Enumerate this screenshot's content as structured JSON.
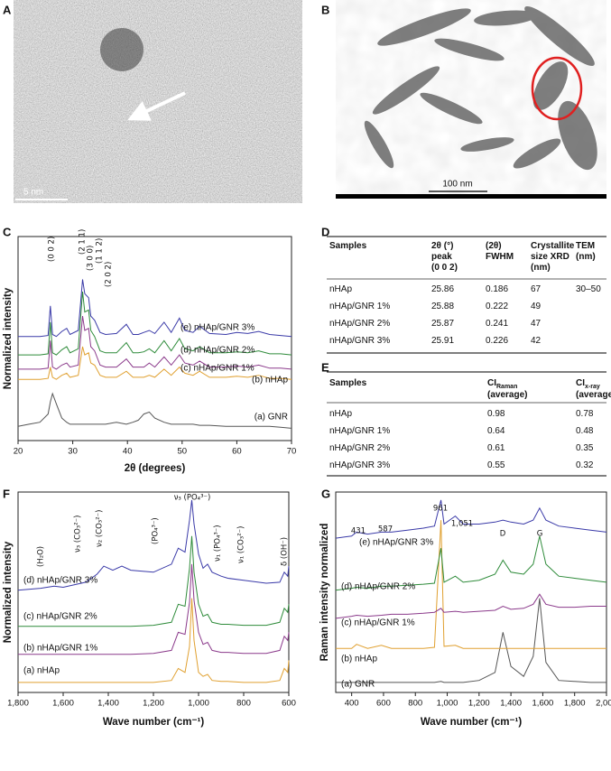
{
  "images": [
    {
      "panel": "A",
      "scale_bar": "5 nm"
    },
    {
      "panel": "B",
      "scale_bar": "100 nm"
    }
  ],
  "chart_data": [
    {
      "type": "line",
      "panel": "C",
      "xlabel": "2θ (degrees)",
      "ylabel": "Normalized intensity",
      "x": [
        20,
        22,
        24,
        25.5,
        25.9,
        26.3,
        27,
        28,
        28.9,
        29.5,
        31,
        31.8,
        32.2,
        32.9,
        33.3,
        34,
        35,
        36,
        38,
        39.8,
        41,
        42,
        43,
        44,
        45,
        46.7,
        48,
        49.5,
        50.5,
        52,
        53.2,
        55,
        58,
        60,
        62,
        64,
        66,
        68,
        70
      ],
      "xlim": [
        20,
        70
      ],
      "xticks": [
        20,
        30,
        40,
        50,
        60,
        70
      ],
      "ylim": [
        0,
        10
      ],
      "series": [
        {
          "name": "(a) GNR",
          "color": "#555555",
          "values": [
            0.7,
            0.8,
            0.9,
            1.3,
            1.9,
            2.3,
            1.8,
            1.1,
            0.9,
            0.8,
            0.8,
            0.8,
            0.8,
            0.8,
            0.8,
            0.8,
            0.8,
            0.8,
            0.9,
            0.8,
            0.9,
            1.0,
            1.3,
            1.4,
            1.1,
            0.9,
            0.8,
            0.8,
            0.8,
            0.8,
            0.75,
            0.75,
            0.7,
            0.7,
            0.7,
            0.7,
            0.7,
            0.65,
            0.6
          ]
        },
        {
          "name": "(b) nHAp",
          "color": "#e0a030",
          "values": [
            3.0,
            3.0,
            3.0,
            3.05,
            3.6,
            3.1,
            3.0,
            3.2,
            3.3,
            3.1,
            3.2,
            4.6,
            4.2,
            4.3,
            3.8,
            3.7,
            3.2,
            3.1,
            3.1,
            3.4,
            3.1,
            3.1,
            3.1,
            3.2,
            3.1,
            3.5,
            3.2,
            3.6,
            3.3,
            3.2,
            3.4,
            3.1,
            3.1,
            3.15,
            3.1,
            3.2,
            3.05,
            3.05,
            3.0
          ]
        },
        {
          "name": "(c) nHAp/GNR 1%",
          "color": "#8b3a8b",
          "values": [
            3.5,
            3.5,
            3.5,
            3.55,
            4.9,
            3.6,
            3.5,
            3.7,
            3.8,
            3.6,
            3.7,
            6.1,
            5.4,
            5.5,
            4.6,
            4.4,
            3.7,
            3.6,
            3.6,
            4.0,
            3.6,
            3.6,
            3.6,
            3.8,
            3.6,
            4.1,
            3.7,
            4.2,
            3.8,
            3.7,
            3.9,
            3.6,
            3.6,
            3.65,
            3.6,
            3.7,
            3.55,
            3.55,
            3.5
          ]
        },
        {
          "name": "(d) nHAp/GNR 2%",
          "color": "#2e8b3a",
          "values": [
            4.2,
            4.2,
            4.2,
            4.25,
            5.8,
            4.3,
            4.2,
            4.45,
            4.6,
            4.3,
            4.5,
            7.3,
            6.3,
            6.4,
            5.4,
            5.1,
            4.4,
            4.3,
            4.3,
            4.8,
            4.3,
            4.3,
            4.35,
            4.5,
            4.3,
            4.9,
            4.4,
            5.0,
            4.5,
            4.4,
            4.6,
            4.3,
            4.3,
            4.35,
            4.3,
            4.4,
            4.25,
            4.25,
            4.2
          ]
        },
        {
          "name": "(e) nHAp/GNR 3%",
          "color": "#3a3aa8",
          "values": [
            5.1,
            5.1,
            5.1,
            5.15,
            6.6,
            5.2,
            5.1,
            5.35,
            5.5,
            5.2,
            5.4,
            7.9,
            7.2,
            7.0,
            6.1,
            5.9,
            5.3,
            5.2,
            5.25,
            5.7,
            5.2,
            5.2,
            5.3,
            5.4,
            5.25,
            5.8,
            5.3,
            6.0,
            5.4,
            5.3,
            5.6,
            5.25,
            5.2,
            5.3,
            5.25,
            5.35,
            5.2,
            5.15,
            5.1
          ]
        }
      ],
      "annotations": [
        "(0 0 2)",
        "(2 1 1)",
        "(3 0 0)",
        "(1 1 2)",
        "(2 0 2)"
      ]
    },
    {
      "type": "line",
      "panel": "F",
      "xlabel": "Wave number (cm⁻¹)",
      "ylabel": "Normalized intensity",
      "x": [
        1800,
        1700,
        1640,
        1600,
        1500,
        1450,
        1420,
        1380,
        1340,
        1300,
        1200,
        1120,
        1090,
        1060,
        1040,
        1030,
        1020,
        1000,
        980,
        960,
        940,
        900,
        870,
        800,
        700,
        640,
        620,
        605,
        600
      ],
      "xlim": [
        1800,
        600
      ],
      "xticks": [
        {
          "value": 1800,
          "label": "1,800"
        },
        {
          "value": 1600,
          "label": "1,600"
        },
        {
          "value": 1400,
          "label": "1,400"
        },
        {
          "value": 1200,
          "label": "1,200"
        },
        {
          "value": 1000,
          "label": "1,000"
        },
        800,
        600
      ],
      "ylim": [
        0,
        10
      ],
      "series": [
        {
          "name": "(a) nHAp",
          "color": "#e0a030",
          "values": [
            0.5,
            0.5,
            0.5,
            0.5,
            0.5,
            0.5,
            0.5,
            0.5,
            0.5,
            0.5,
            0.5,
            0.6,
            1.2,
            1.0,
            2.3,
            4.7,
            2.6,
            1.0,
            0.8,
            0.9,
            0.6,
            0.55,
            0.55,
            0.5,
            0.5,
            0.6,
            1.2,
            1.0,
            1.6
          ]
        },
        {
          "name": "(b) nHAp/GNR 1%",
          "color": "#8b3a8b",
          "values": [
            1.9,
            1.9,
            1.9,
            1.9,
            1.9,
            1.9,
            1.9,
            1.9,
            1.9,
            1.9,
            1.95,
            2.1,
            3.0,
            2.9,
            4.5,
            6.4,
            4.6,
            3.0,
            2.4,
            2.5,
            2.1,
            2.0,
            2.0,
            1.95,
            1.95,
            2.1,
            2.8,
            2.6,
            3.0
          ]
        },
        {
          "name": "(c) nHAp/GNR 2%",
          "color": "#2e8b3a",
          "values": [
            3.3,
            3.3,
            3.3,
            3.3,
            3.3,
            3.3,
            3.3,
            3.3,
            3.3,
            3.3,
            3.35,
            3.5,
            4.4,
            4.3,
            6.2,
            7.8,
            6.0,
            4.4,
            3.8,
            3.9,
            3.5,
            3.4,
            3.4,
            3.35,
            3.35,
            3.5,
            4.2,
            4.0,
            4.4
          ]
        },
        {
          "name": "(d) nHAp/GNR 3%",
          "color": "#3a3aa8",
          "values": [
            5.1,
            5.2,
            5.3,
            5.25,
            5.5,
            5.9,
            6.3,
            6.1,
            6.3,
            6.1,
            6.0,
            6.4,
            7.2,
            7.0,
            8.6,
            9.6,
            8.4,
            6.9,
            6.2,
            6.4,
            6.0,
            5.8,
            5.7,
            5.6,
            5.45,
            5.5,
            6.0,
            5.8,
            6.3
          ]
        }
      ],
      "annotations": [
        "(H₂O)",
        "ν₃ (CO₃²⁻)",
        "ν₂ (CO₃²⁻)",
        "(PO₄³⁻)",
        "ν₃ (PO₄³⁻)",
        "ν₁ (PO₄³⁻)",
        "ν₁ (CO₃²⁻)",
        "δ (OH⁻)"
      ]
    },
    {
      "type": "line",
      "panel": "G",
      "xlabel": "Wave number (cm⁻¹)",
      "ylabel": "Raman intensity normalized",
      "x": [
        300,
        400,
        431,
        500,
        587,
        650,
        750,
        850,
        920,
        961,
        980,
        1051,
        1100,
        1200,
        1300,
        1350,
        1400,
        1480,
        1540,
        1580,
        1620,
        1700,
        1800,
        1900,
        2000
      ],
      "xlim": [
        300,
        2000
      ],
      "xticks": [
        400,
        600,
        800,
        {
          "value": 1000,
          "label": "1,000"
        },
        {
          "value": 1200,
          "label": "1,200"
        },
        {
          "value": 1400,
          "label": "1,400"
        },
        {
          "value": 1600,
          "label": "1,600"
        },
        {
          "value": 1800,
          "label": "1,800"
        },
        {
          "value": 2000,
          "label": "2,000"
        }
      ],
      "ylim": [
        0,
        10
      ],
      "series": [
        {
          "name": "(a) GNR",
          "color": "#555555",
          "values": [
            0.5,
            0.5,
            0.5,
            0.5,
            0.5,
            0.5,
            0.5,
            0.5,
            0.5,
            0.55,
            0.5,
            0.5,
            0.5,
            0.6,
            1.0,
            3.0,
            1.3,
            0.8,
            1.8,
            4.7,
            1.5,
            0.6,
            0.55,
            0.5,
            0.5
          ]
        },
        {
          "name": "(b) nHAp",
          "color": "#e0a030",
          "values": [
            2.2,
            2.2,
            2.4,
            2.2,
            2.35,
            2.2,
            2.2,
            2.2,
            2.25,
            8.6,
            2.3,
            2.35,
            2.2,
            2.2,
            2.2,
            2.2,
            2.2,
            2.2,
            2.2,
            2.2,
            2.2,
            2.2,
            2.2,
            2.2,
            2.2
          ]
        },
        {
          "name": "(c) nHAp/GNR 1%",
          "color": "#8b3a8b",
          "values": [
            3.7,
            3.8,
            3.85,
            3.8,
            3.85,
            3.9,
            3.9,
            3.95,
            4.0,
            4.2,
            4.0,
            4.05,
            4.0,
            4.05,
            4.1,
            4.3,
            4.15,
            4.2,
            4.4,
            4.9,
            4.4,
            4.25,
            4.25,
            4.3,
            4.3
          ]
        },
        {
          "name": "(d) nHAp/GNR 2%",
          "color": "#2e8b3a",
          "values": [
            5.1,
            5.2,
            5.25,
            5.2,
            5.3,
            5.3,
            5.35,
            5.4,
            5.45,
            7.2,
            5.5,
            5.8,
            5.5,
            5.6,
            5.9,
            6.6,
            6.0,
            5.9,
            6.4,
            7.8,
            6.4,
            5.8,
            5.7,
            5.6,
            5.5
          ]
        },
        {
          "name": "(e) nHAp/GNR 3%",
          "color": "#3a3aa8",
          "values": [
            7.7,
            7.8,
            8.0,
            7.9,
            8.0,
            8.0,
            8.1,
            8.2,
            8.3,
            9.6,
            8.4,
            8.8,
            8.4,
            8.4,
            8.5,
            8.6,
            8.5,
            8.4,
            8.6,
            9.2,
            8.6,
            8.3,
            8.2,
            8.1,
            8.0
          ]
        }
      ],
      "annotations": [
        "431",
        "587",
        "961",
        "1,051",
        "D",
        "G"
      ]
    }
  ],
  "tables": [
    {
      "panel": "D",
      "headers": [
        [
          "Samples"
        ],
        [
          "2θ (°)",
          "peak",
          "(0 0 2)"
        ],
        [
          "(2θ)",
          "FWHM"
        ],
        [
          "Crystallite",
          "size XRD",
          "(nm)"
        ],
        [
          "TEM",
          "(nm)"
        ]
      ],
      "rows": [
        [
          "nHAp",
          25.86,
          0.186,
          67,
          "30–50"
        ],
        [
          "nHAp/GNR 1%",
          25.88,
          0.222,
          49
        ],
        [
          "nHAp/GNR 2%",
          25.87,
          0.241,
          47
        ],
        [
          "nHAp/GNR 3%",
          25.91,
          0.226,
          42
        ]
      ]
    },
    {
      "panel": "E",
      "headers": [
        {
          "text": "Samples"
        },
        {
          "text": "CI",
          "sub": "Raman",
          "note": "(average)"
        },
        {
          "text": "CI",
          "sub": "x-ray",
          "note": "(average)"
        }
      ],
      "rows": [
        [
          "nHAp",
          0.98,
          0.78
        ],
        [
          "nHAp/GNR 1%",
          0.64,
          0.48
        ],
        [
          "nHAp/GNR 2%",
          0.61,
          0.35
        ],
        [
          "nHAp/GNR 3%",
          0.55,
          0.32
        ]
      ]
    }
  ]
}
